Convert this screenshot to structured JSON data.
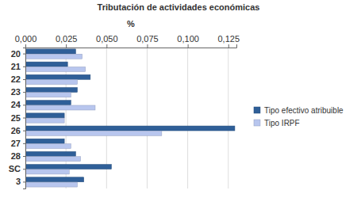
{
  "chart_data": {
    "type": "bar",
    "orientation": "horizontal",
    "title": "Tributación de actividades económicas",
    "x_label": "%",
    "categories": [
      "20",
      "21",
      "22",
      "23",
      "24",
      "25",
      "26",
      "27",
      "28",
      "SC",
      "3"
    ],
    "series": [
      {
        "name": "Tipo efectivo atribuible",
        "color": "#2f5f98",
        "values": [
          0.031,
          0.026,
          0.04,
          0.032,
          0.028,
          0.024,
          0.129,
          0.024,
          0.031,
          0.053,
          0.036
        ]
      },
      {
        "name": "Tipo IRPF",
        "color": "#b8c6ee",
        "values": [
          0.035,
          0.037,
          0.032,
          0.028,
          0.043,
          0.024,
          0.084,
          0.028,
          0.034,
          0.027,
          0.032
        ]
      }
    ],
    "xlim": [
      0,
      0.13
    ],
    "xticks": [
      {
        "value": 0,
        "label": "0,000"
      },
      {
        "value": 0.025,
        "label": "0,025"
      },
      {
        "value": 0.05,
        "label": "0,050"
      },
      {
        "value": 0.075,
        "label": "0,075"
      },
      {
        "value": 0.1,
        "label": "0,100"
      },
      {
        "value": 0.125,
        "label": "0,125"
      }
    ],
    "grid": true,
    "legend": "right"
  }
}
